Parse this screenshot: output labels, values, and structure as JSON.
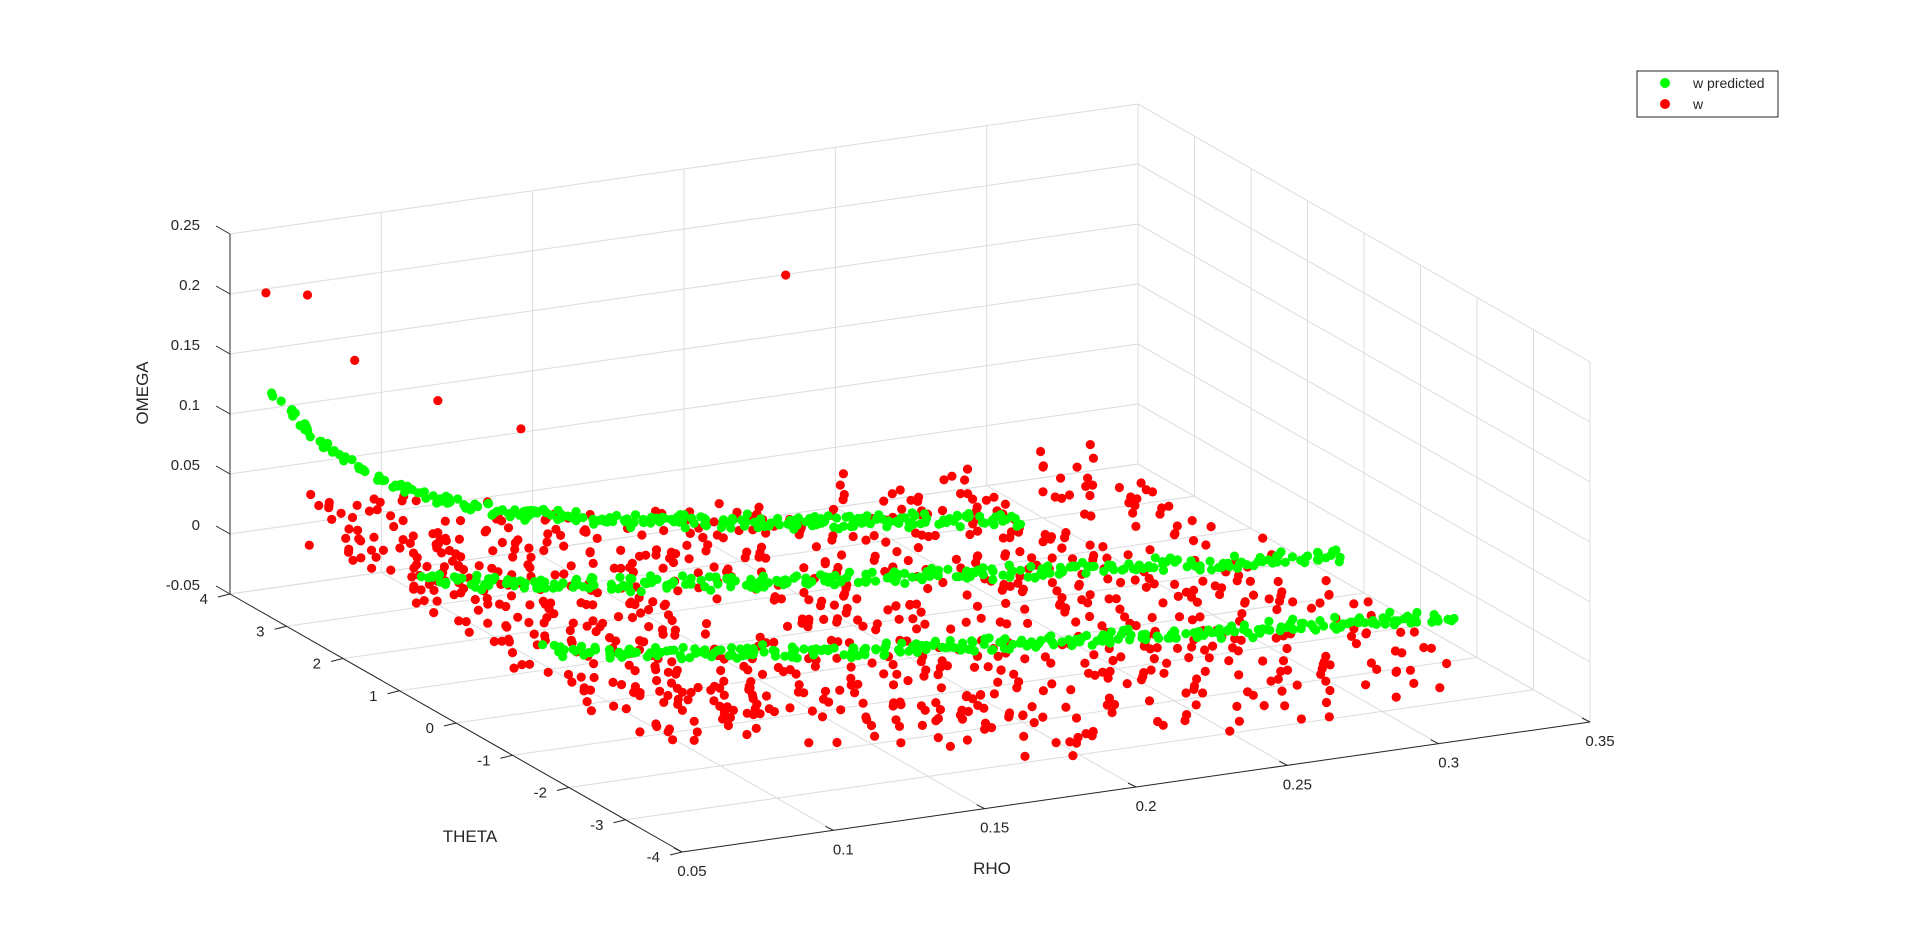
{
  "chart_data": {
    "type": "scatter",
    "dimensions": 3,
    "xlabel": "RHO",
    "ylabel": "THETA",
    "zlabel": "OMEGA",
    "xlim": [
      0.05,
      0.35
    ],
    "ylim": [
      -4,
      4
    ],
    "zlim": [
      -0.05,
      0.25
    ],
    "x_ticks": [
      "0.05",
      "0.1",
      "0.15",
      "0.2",
      "0.25",
      "0.3",
      "0.35"
    ],
    "y_ticks": [
      "4",
      "3",
      "2",
      "1",
      "0",
      "-1",
      "-2",
      "-3",
      "-4"
    ],
    "z_ticks": [
      "0.25",
      "0.2",
      "0.15",
      "0.1",
      "0.05",
      "0",
      "-0.05"
    ],
    "grid": true,
    "legend_position": "top-right",
    "series": [
      {
        "name": "w predicted",
        "color": "#00ff00",
        "sample_points": [
          [
            0.06,
            3.9,
            0.12
          ],
          [
            0.065,
            3.8,
            0.11
          ],
          [
            0.07,
            3.6,
            0.095
          ],
          [
            0.08,
            3.3,
            0.075
          ],
          [
            0.09,
            3.0,
            0.06
          ],
          [
            0.1,
            2.6,
            0.05
          ],
          [
            0.12,
            2.3,
            0.045
          ],
          [
            0.15,
            2.0,
            0.04
          ],
          [
            0.18,
            1.7,
            0.035
          ],
          [
            0.2,
            1.5,
            0.03
          ],
          [
            0.22,
            1.3,
            0.025
          ],
          [
            0.24,
            1.2,
            0.02
          ],
          [
            0.15,
            0.3,
            0.03
          ],
          [
            0.2,
            0.0,
            0.025
          ],
          [
            0.25,
            -0.3,
            0.02
          ],
          [
            0.3,
            -0.6,
            0.015
          ],
          [
            0.15,
            -1.5,
            0.03
          ],
          [
            0.2,
            -1.8,
            0.025
          ],
          [
            0.25,
            -2.1,
            0.02
          ],
          [
            0.3,
            -2.4,
            0.015
          ],
          [
            0.33,
            -2.6,
            0.012
          ]
        ]
      },
      {
        "name": "w",
        "color": "#ff0000",
        "sample_points": [
          [
            0.06,
            3.9,
            0.2
          ],
          [
            0.07,
            3.7,
            0.2
          ],
          [
            0.08,
            3.4,
            0.15
          ],
          [
            0.1,
            3.0,
            0.12
          ],
          [
            0.12,
            2.6,
            0.1
          ],
          [
            0.2,
            2.2,
            0.21
          ],
          [
            0.07,
            3.5,
            0.03
          ],
          [
            0.1,
            3.0,
            0.01
          ],
          [
            0.15,
            2.0,
            0.0
          ],
          [
            0.2,
            1.5,
            -0.01
          ],
          [
            0.25,
            1.0,
            -0.01
          ],
          [
            0.12,
            0.5,
            -0.02
          ],
          [
            0.18,
            0.0,
            -0.03
          ],
          [
            0.25,
            -0.5,
            -0.02
          ],
          [
            0.3,
            -1.0,
            -0.01
          ],
          [
            0.12,
            -1.0,
            -0.04
          ],
          [
            0.18,
            -2.0,
            -0.04
          ],
          [
            0.25,
            -2.5,
            -0.03
          ],
          [
            0.32,
            -2.8,
            -0.01
          ]
        ]
      }
    ]
  }
}
